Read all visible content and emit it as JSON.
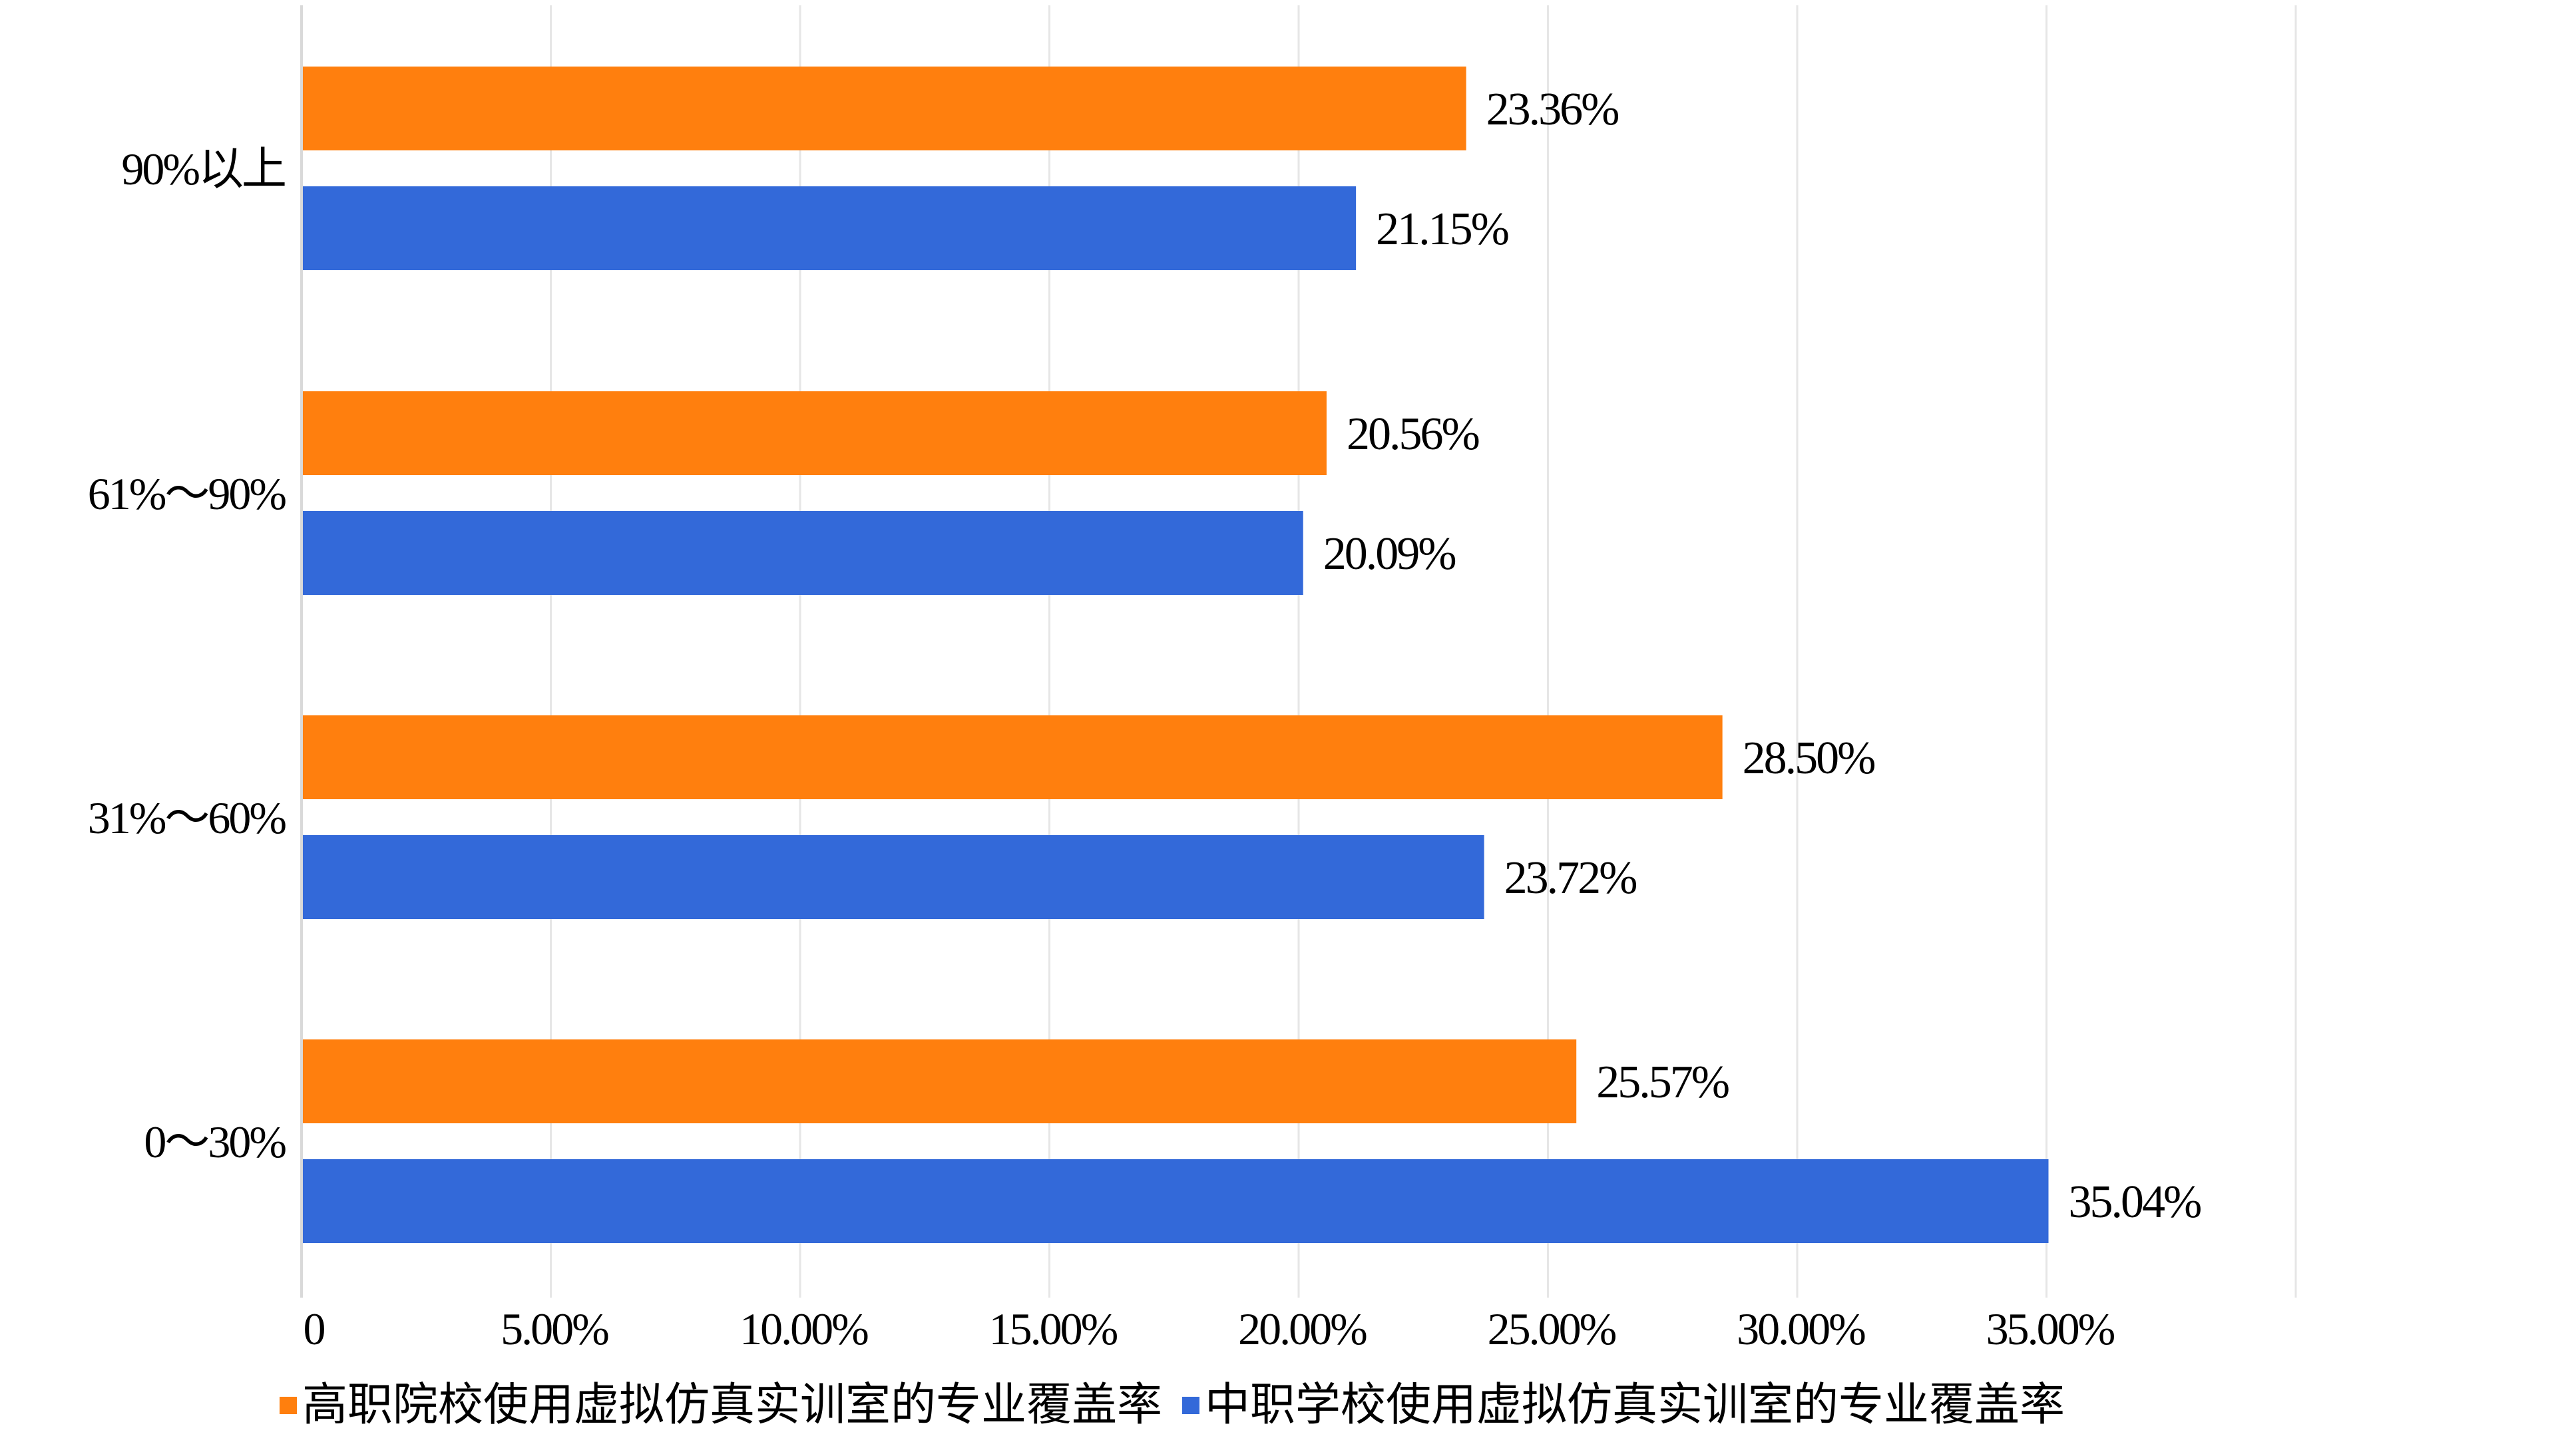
{
  "chart_data": {
    "type": "bar",
    "orientation": "horizontal",
    "categories": [
      "90%以上",
      "61%～90%",
      "31%～60%",
      "0～30%"
    ],
    "series": [
      {
        "name": "高职院校使用虚拟仿真实训室的专业覆盖率",
        "color": "#FF7F0E",
        "values": [
          23.36,
          20.56,
          28.5,
          25.57
        ],
        "labels": [
          "23.36%",
          "20.56%",
          "28.50%",
          "25.57%"
        ]
      },
      {
        "name": "中职学校使用虚拟仿真实训室的专业覆盖率",
        "color": "#3369D9",
        "values": [
          21.15,
          20.09,
          23.72,
          35.04
        ],
        "labels": [
          "21.15%",
          "20.09%",
          "23.72%",
          "35.04%"
        ]
      }
    ],
    "xlim": [
      0,
      40
    ],
    "x_ticks": [
      0,
      5,
      10,
      15,
      20,
      25,
      30,
      35
    ],
    "x_tick_labels": [
      "0",
      "5.00%",
      "10.00%",
      "15.00%",
      "20.00%",
      "25.00%",
      "30.00%",
      "35.00%"
    ],
    "grid": true,
    "legend_position": "bottom",
    "title": "",
    "xlabel": "",
    "ylabel": ""
  }
}
